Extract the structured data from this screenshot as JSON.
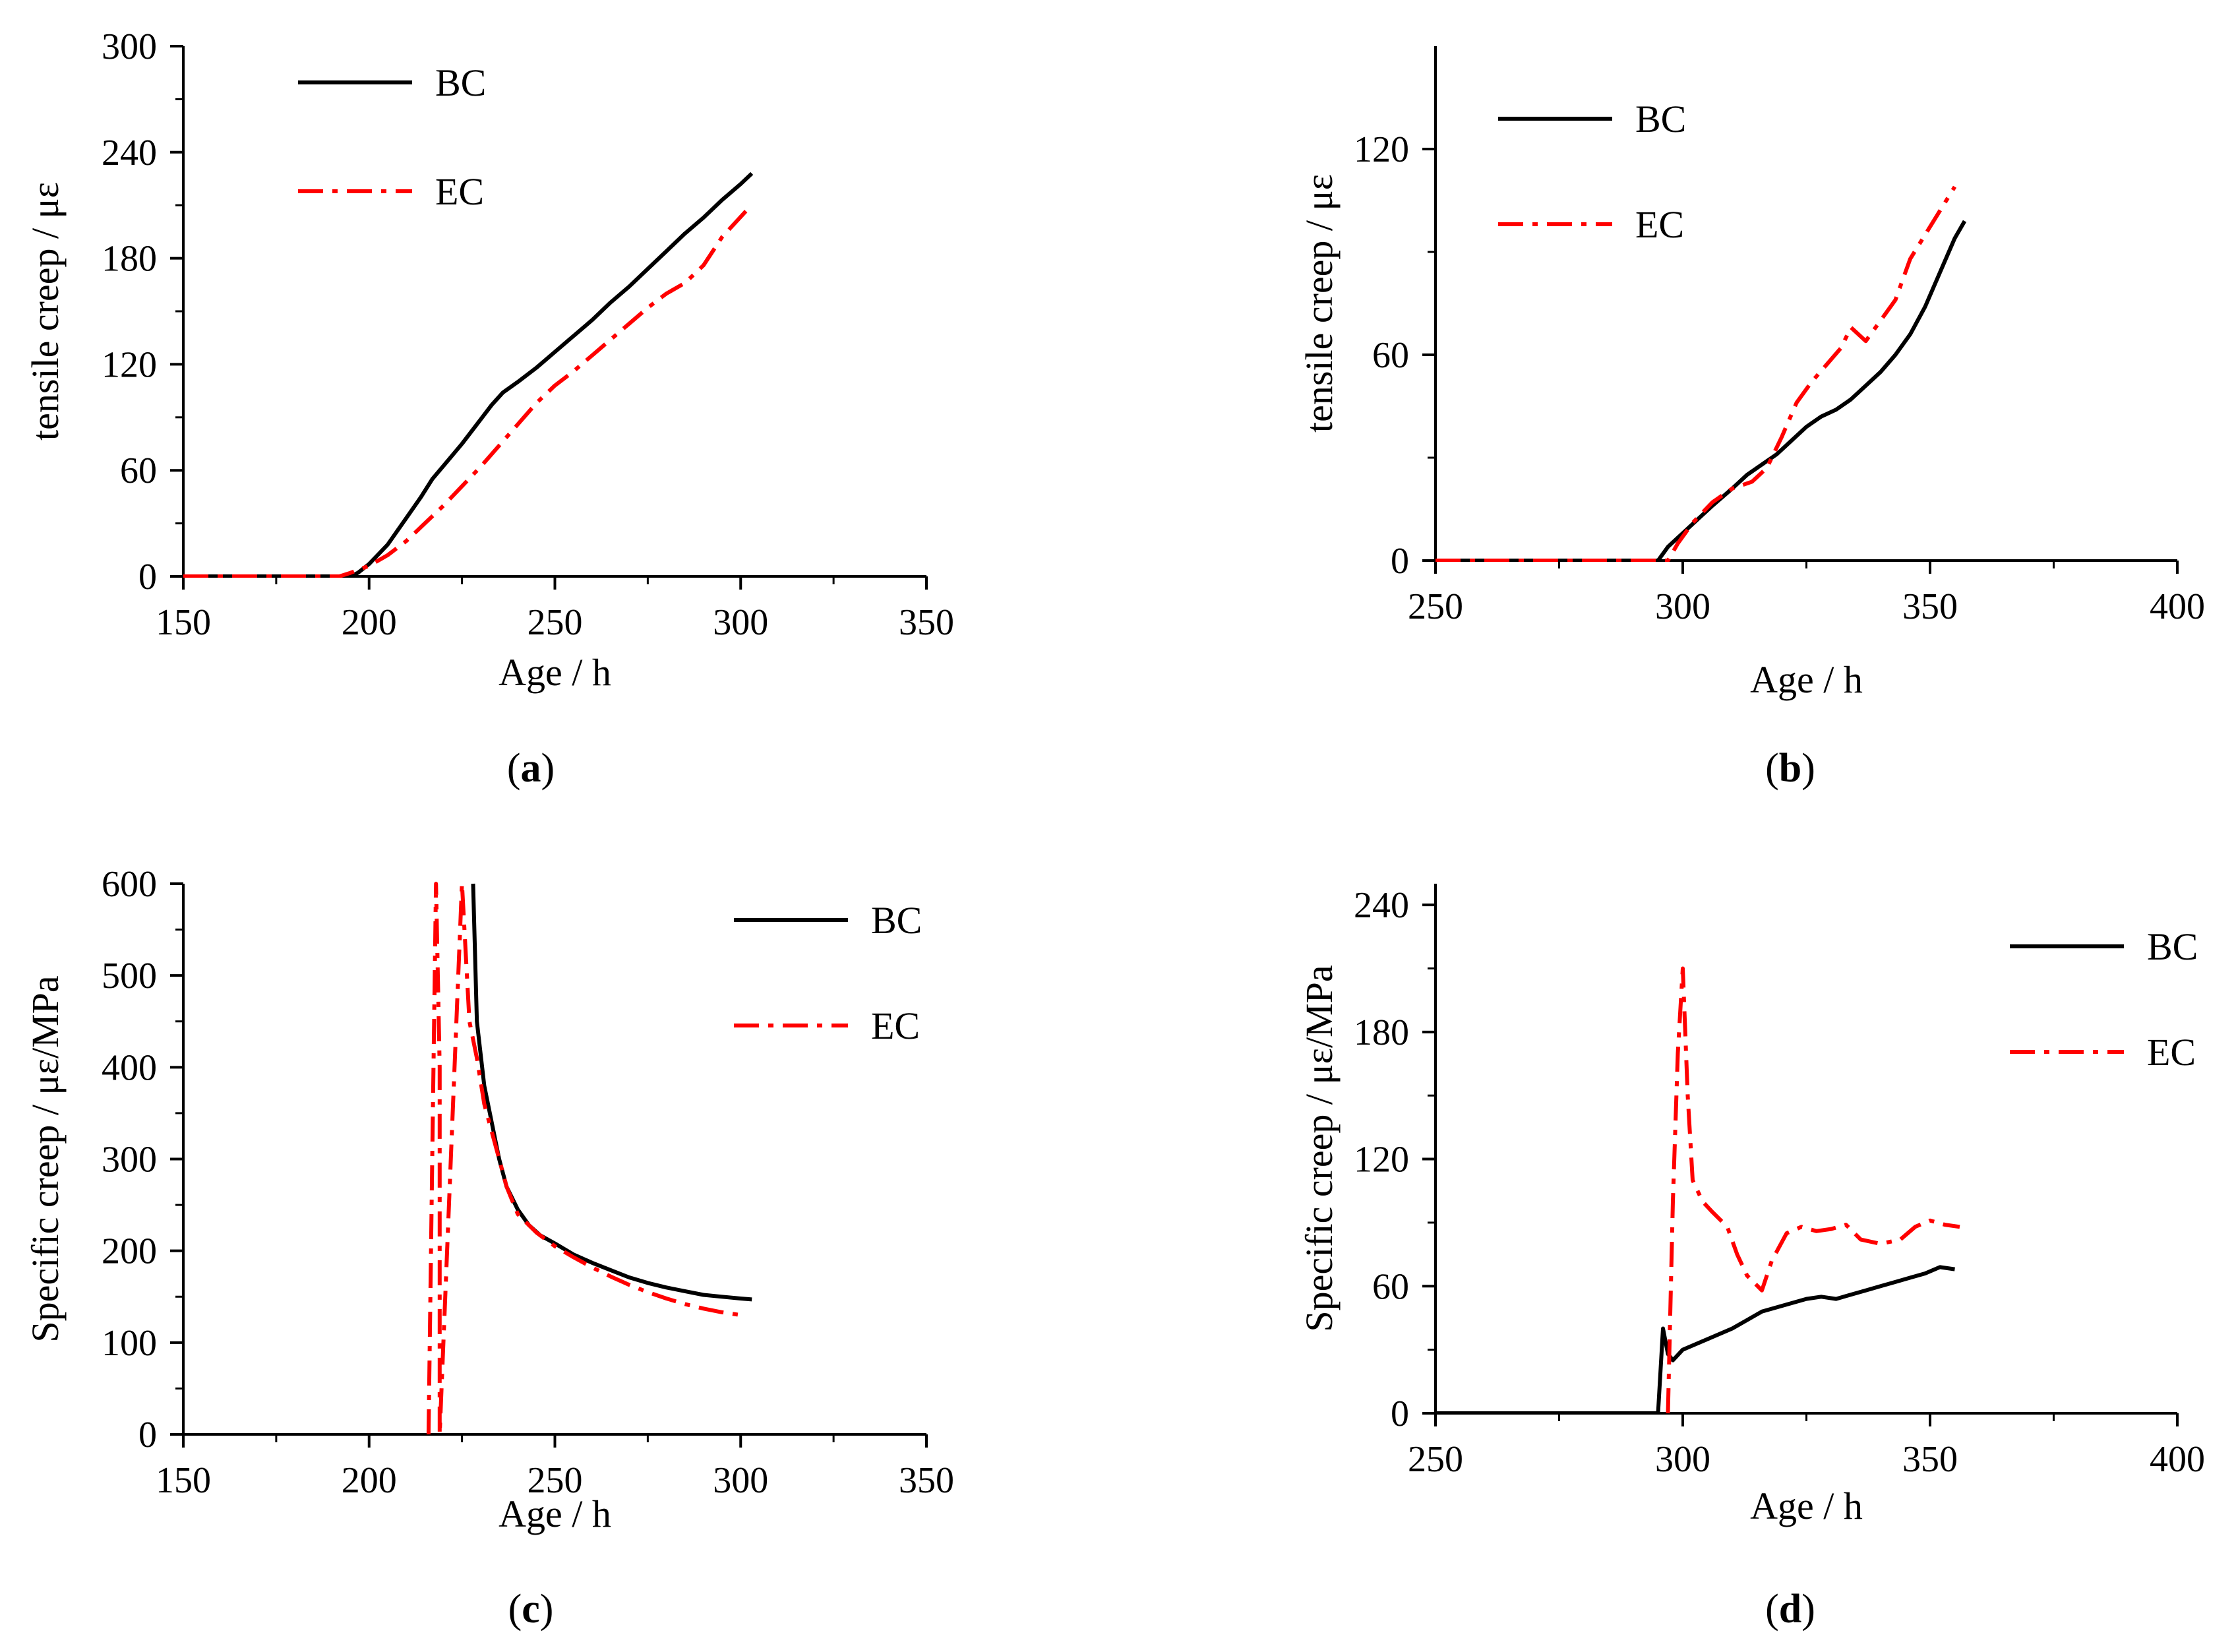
{
  "figure": {
    "captions": [
      "(a)",
      "(b)",
      "(c)",
      "(d)"
    ],
    "colors": {
      "BC": "#000000",
      "EC": "#ff0000",
      "axis": "#000000"
    }
  },
  "chart_data": [
    {
      "id": "a",
      "type": "line",
      "caption": "(a)",
      "caption_letter": "a",
      "xlabel": "Age / h",
      "ylabel": "tensile creep / με",
      "xlim": [
        150,
        350
      ],
      "ylim": [
        0,
        300
      ],
      "xticks": [
        150,
        200,
        250,
        300,
        350
      ],
      "yticks": [
        0,
        60,
        120,
        180,
        240,
        300
      ],
      "legend_position": "top-left",
      "series": [
        {
          "name": "BC",
          "style": "solid",
          "points": [
            [
              150,
              0
            ],
            [
              195,
              0
            ],
            [
              197,
              2
            ],
            [
              200,
              7
            ],
            [
              205,
              18
            ],
            [
              210,
              33
            ],
            [
              214,
              45
            ],
            [
              217,
              55
            ],
            [
              221,
              65
            ],
            [
              225,
              75
            ],
            [
              229,
              86
            ],
            [
              233,
              97
            ],
            [
              236,
              104
            ],
            [
              240,
              110
            ],
            [
              245,
              118
            ],
            [
              250,
              127
            ],
            [
              255,
              136
            ],
            [
              260,
              145
            ],
            [
              265,
              155
            ],
            [
              270,
              164
            ],
            [
              275,
              174
            ],
            [
              280,
              184
            ],
            [
              285,
              194
            ],
            [
              290,
              203
            ],
            [
              295,
              213
            ],
            [
              300,
              222
            ],
            [
              303,
              228
            ]
          ]
        },
        {
          "name": "EC",
          "style": "dashdot",
          "points": [
            [
              150,
              0
            ],
            [
              192,
              0
            ],
            [
              195,
              2
            ],
            [
              200,
              6
            ],
            [
              205,
              12
            ],
            [
              210,
              20
            ],
            [
              215,
              30
            ],
            [
              220,
              40
            ],
            [
              225,
              51
            ],
            [
              230,
              62
            ],
            [
              235,
              74
            ],
            [
              240,
              86
            ],
            [
              245,
              98
            ],
            [
              250,
              108
            ],
            [
              255,
              116
            ],
            [
              260,
              125
            ],
            [
              265,
              134
            ],
            [
              270,
              143
            ],
            [
              275,
              152
            ],
            [
              280,
              160
            ],
            [
              285,
              166
            ],
            [
              290,
              176
            ],
            [
              295,
              192
            ],
            [
              302,
              208
            ]
          ]
        }
      ]
    },
    {
      "id": "b",
      "type": "line",
      "caption": "(b)",
      "caption_letter": "b",
      "xlabel": "Age / h",
      "ylabel": "tensile creep / με",
      "xlim": [
        250,
        400
      ],
      "ylim": [
        0,
        150
      ],
      "xticks": [
        250,
        300,
        350,
        400
      ],
      "yticks": [
        0,
        60,
        120
      ],
      "legend_position": "top-left",
      "series": [
        {
          "name": "BC",
          "style": "solid",
          "points": [
            [
              250,
              0
            ],
            [
              295,
              0
            ],
            [
              297,
              4
            ],
            [
              300,
              8
            ],
            [
              303,
              12
            ],
            [
              306,
              16
            ],
            [
              310,
              21
            ],
            [
              313,
              25
            ],
            [
              316,
              28
            ],
            [
              319,
              31
            ],
            [
              322,
              35
            ],
            [
              325,
              39
            ],
            [
              328,
              42
            ],
            [
              331,
              44
            ],
            [
              334,
              47
            ],
            [
              337,
              51
            ],
            [
              340,
              55
            ],
            [
              343,
              60
            ],
            [
              346,
              66
            ],
            [
              349,
              74
            ],
            [
              352,
              84
            ],
            [
              355,
              94
            ],
            [
              357,
              99
            ]
          ]
        },
        {
          "name": "EC",
          "style": "dashdot",
          "points": [
            [
              250,
              0
            ],
            [
              297,
              0
            ],
            [
              299,
              5
            ],
            [
              302,
              11
            ],
            [
              306,
              17
            ],
            [
              310,
              21
            ],
            [
              314,
              23
            ],
            [
              317,
              27
            ],
            [
              320,
              36
            ],
            [
              323,
              46
            ],
            [
              326,
              52
            ],
            [
              329,
              57
            ],
            [
              332,
              62
            ],
            [
              334,
              68
            ],
            [
              337,
              64
            ],
            [
              340,
              70
            ],
            [
              343,
              76
            ],
            [
              346,
              88
            ],
            [
              349,
              95
            ],
            [
              352,
              102
            ],
            [
              355,
              109
            ]
          ]
        }
      ]
    },
    {
      "id": "c",
      "type": "line",
      "caption": "(c)",
      "caption_letter": "c",
      "xlabel": "Age / h",
      "ylabel": "Specific creep / με/MPa",
      "xlim": [
        150,
        350
      ],
      "ylim": [
        0,
        600
      ],
      "xticks": [
        150,
        200,
        250,
        300,
        350
      ],
      "yticks": [
        0,
        100,
        200,
        300,
        400,
        500,
        600
      ],
      "legend_position": "top-right",
      "series": [
        {
          "name": "BC",
          "style": "solid",
          "points": [
            [
              228,
              600
            ],
            [
              229,
              450
            ],
            [
              231,
              380
            ],
            [
              233,
              340
            ],
            [
              235,
              300
            ],
            [
              237,
              270
            ],
            [
              240,
              245
            ],
            [
              243,
              228
            ],
            [
              246,
              217
            ],
            [
              250,
              208
            ],
            [
              255,
              196
            ],
            [
              260,
              187
            ],
            [
              265,
              179
            ],
            [
              270,
              171
            ],
            [
              275,
              165
            ],
            [
              280,
              160
            ],
            [
              285,
              156
            ],
            [
              290,
              152
            ],
            [
              295,
              150
            ],
            [
              300,
              148
            ],
            [
              303,
              147
            ]
          ]
        },
        {
          "name": "EC",
          "style": "dashdot",
          "points": [
            [
              216,
              0
            ],
            [
              217,
              300
            ],
            [
              218,
              600
            ],
            [
              219,
              400
            ],
            [
              219,
              0
            ],
            [
              225,
              600
            ],
            [
              227,
              450
            ],
            [
              229,
              410
            ],
            [
              231,
              360
            ],
            [
              233,
              330
            ],
            [
              235,
              300
            ],
            [
              237,
              270
            ],
            [
              240,
              240
            ],
            [
              245,
              220
            ],
            [
              250,
              205
            ],
            [
              255,
              193
            ],
            [
              260,
              182
            ],
            [
              265,
              172
            ],
            [
              270,
              163
            ],
            [
              275,
              155
            ],
            [
              280,
              148
            ],
            [
              285,
              142
            ],
            [
              290,
              137
            ],
            [
              295,
              133
            ],
            [
              300,
              130
            ]
          ]
        }
      ]
    },
    {
      "id": "d",
      "type": "line",
      "caption": "(d)",
      "caption_letter": "d",
      "xlabel": "Age / h",
      "ylabel": "Specific creep / με/MPa",
      "xlim": [
        250,
        400
      ],
      "ylim": [
        0,
        250
      ],
      "xticks": [
        250,
        300,
        350,
        400
      ],
      "yticks": [
        0,
        60,
        120,
        180,
        240
      ],
      "legend_position": "top-right",
      "series": [
        {
          "name": "BC",
          "style": "solid",
          "points": [
            [
              250,
              0
            ],
            [
              295,
              0
            ],
            [
              296,
              40
            ],
            [
              297,
              28
            ],
            [
              298,
              25
            ],
            [
              300,
              30
            ],
            [
              303,
              33
            ],
            [
              306,
              36
            ],
            [
              310,
              40
            ],
            [
              313,
              44
            ],
            [
              316,
              48
            ],
            [
              319,
              50
            ],
            [
              322,
              52
            ],
            [
              325,
              54
            ],
            [
              328,
              55
            ],
            [
              331,
              54
            ],
            [
              334,
              56
            ],
            [
              337,
              58
            ],
            [
              340,
              60
            ],
            [
              343,
              62
            ],
            [
              346,
              64
            ],
            [
              349,
              66
            ],
            [
              352,
              69
            ],
            [
              355,
              68
            ]
          ]
        },
        {
          "name": "EC",
          "style": "dashdot",
          "points": [
            [
              297,
              0
            ],
            [
              298,
              100
            ],
            [
              299,
              170
            ],
            [
              300,
              210
            ],
            [
              301,
              150
            ],
            [
              302,
              110
            ],
            [
              304,
              100
            ],
            [
              306,
              95
            ],
            [
              309,
              88
            ],
            [
              311,
              75
            ],
            [
              313,
              65
            ],
            [
              316,
              58
            ],
            [
              318,
              72
            ],
            [
              321,
              85
            ],
            [
              324,
              88
            ],
            [
              327,
              86
            ],
            [
              330,
              87
            ],
            [
              333,
              89
            ],
            [
              336,
              82
            ],
            [
              340,
              80
            ],
            [
              344,
              82
            ],
            [
              347,
              88
            ],
            [
              350,
              91
            ],
            [
              353,
              89
            ],
            [
              356,
              88
            ]
          ]
        }
      ]
    }
  ]
}
